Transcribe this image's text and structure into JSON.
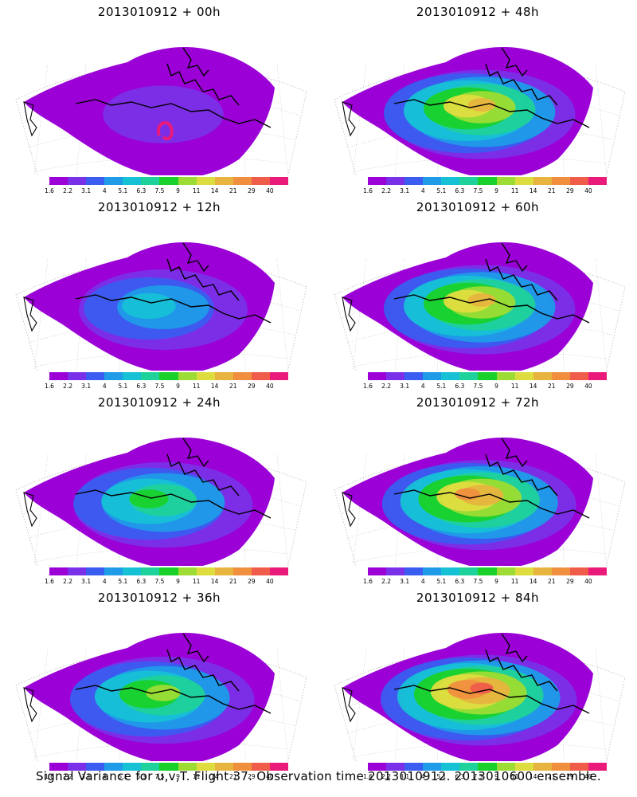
{
  "caption": "Signal Variance for u,v,T. Flight 37. Observation time 2013010912. 2013010600 ensemble.",
  "colorbar": {
    "labels": [
      "1.6",
      "2.2",
      "3.1",
      "4",
      "5.1",
      "6.3",
      "7.5",
      "9",
      "11",
      "14",
      "21",
      "29",
      "40"
    ],
    "colors": [
      "#9b00d7",
      "#7a30e8",
      "#3a5cf0",
      "#1f9be8",
      "#16c1d6",
      "#1fd19a",
      "#19d12a",
      "#9cdc35",
      "#dedd3f",
      "#e7b43f",
      "#f08f3e",
      "#ef5d4a",
      "#ea1a7a"
    ]
  },
  "panels": [
    {
      "title": "2013010912 + 00h",
      "level": 0.05
    },
    {
      "title": "2013010912 + 48h",
      "level": 0.72
    },
    {
      "title": "2013010912 + 12h",
      "level": 0.32
    },
    {
      "title": "2013010912 + 60h",
      "level": 0.78
    },
    {
      "title": "2013010912 + 24h",
      "level": 0.5
    },
    {
      "title": "2013010912 + 72h",
      "level": 0.84
    },
    {
      "title": "2013010912 + 36h",
      "level": 0.62
    },
    {
      "title": "2013010912 + 84h",
      "level": 0.9
    }
  ]
}
